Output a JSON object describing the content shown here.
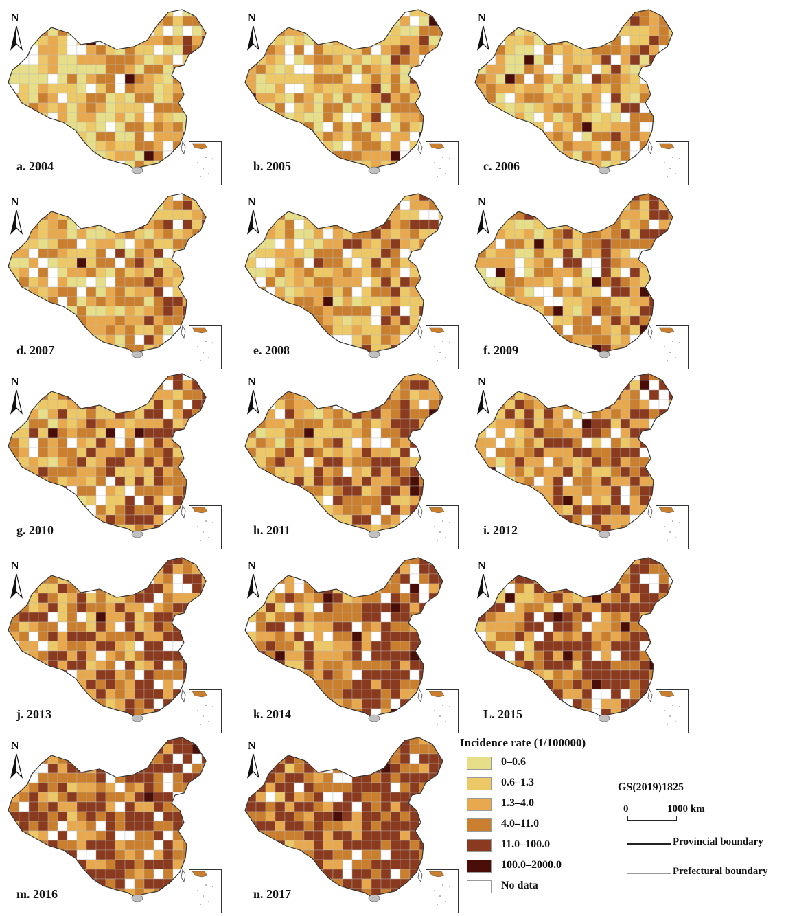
{
  "panels": [
    {
      "label": "a. 2004"
    },
    {
      "label": "b. 2005"
    },
    {
      "label": "c. 2006"
    },
    {
      "label": "d. 2007"
    },
    {
      "label": "e. 2008"
    },
    {
      "label": "f. 2009"
    },
    {
      "label": "g. 2010"
    },
    {
      "label": "h. 2011"
    },
    {
      "label": "i. 2012"
    },
    {
      "label": "j. 2013"
    },
    {
      "label": "k. 2014"
    },
    {
      "label": "L. 2015"
    },
    {
      "label": "m. 2016"
    },
    {
      "label": "n. 2017"
    }
  ],
  "north_label": "N",
  "legend": {
    "title": "Incidence rate (1/100000)",
    "items": [
      {
        "label": "0–0.6",
        "color": "#e6de88"
      },
      {
        "label": "0.6–1.3",
        "color": "#ecc866"
      },
      {
        "label": "1.3–4.0",
        "color": "#e8a94e"
      },
      {
        "label": "4.0–11.0",
        "color": "#c97f2e"
      },
      {
        "label": "11.0–100.0",
        "color": "#8a3a1e"
      },
      {
        "label": "100.0–2000.0",
        "color": "#4a0e08"
      },
      {
        "label": "No data",
        "color": "#ffffff"
      }
    ]
  },
  "map_code": "GS(2019)1825",
  "scale": {
    "start": "0",
    "end": "1000 km"
  },
  "boundaries": {
    "provincial": {
      "label": "Provincial boundary",
      "color": "#222222"
    },
    "prefectural": {
      "label": "Prefectural boundary",
      "color": "#999999"
    }
  }
}
